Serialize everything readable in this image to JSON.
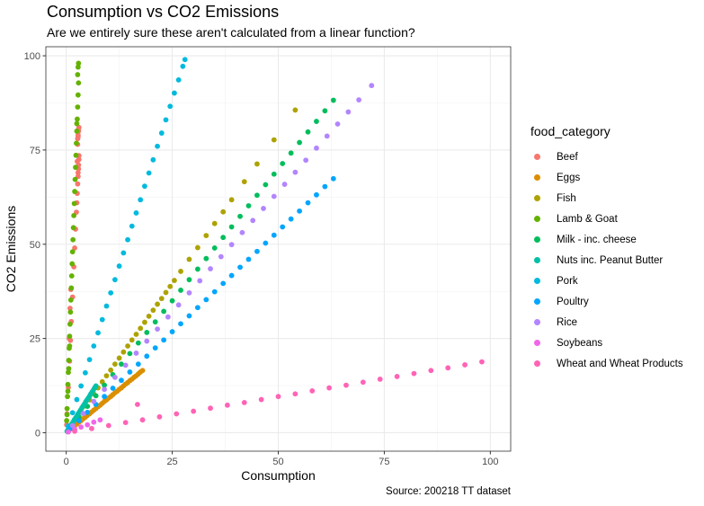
{
  "chart_data": {
    "type": "scatter",
    "title": "Consumption vs CO2 Emissions",
    "subtitle": "Are we entirely sure these aren't calculated from a linear function?",
    "caption": "Source: 200218 TT dataset",
    "xlabel": "Consumption",
    "ylabel": "CO2 Emissions",
    "xlim": [
      -4.8,
      104.8
    ],
    "ylim": [
      -4.9,
      102.4
    ],
    "xticks": [
      0,
      25,
      50,
      75,
      100
    ],
    "yticks": [
      0,
      25,
      50,
      75,
      100
    ],
    "grid": true,
    "legend_title": "food_category",
    "legend_position": "right",
    "series": [
      {
        "name": "Beef",
        "color": "#F8766D",
        "x": [
          0.1,
          0.2,
          0.5,
          0.8,
          1.0,
          1.2,
          1.5,
          1.8,
          2.0,
          2.2,
          2.4,
          2.5,
          2.6,
          2.7,
          2.8,
          2.8,
          2.9,
          2.9,
          3.0,
          3.0,
          2.6,
          2.7,
          2.7,
          2.8,
          2.9,
          2.9,
          3.0,
          2.8,
          0.7,
          0.9,
          1.1
        ],
        "y": [
          2.1,
          5.0,
          12.0,
          19.0,
          24.5,
          29.5,
          36.0,
          44.0,
          49.0,
          54.0,
          58.5,
          61.0,
          63.5,
          66.0,
          68.0,
          69.0,
          70.0,
          71.0,
          72.5,
          73.5,
          72.0,
          76.5,
          78.0,
          79.0,
          80.0,
          80.5,
          81.0,
          78.5,
          25.0,
          33.0,
          38.0
        ]
      },
      {
        "name": "Eggs",
        "color": "#DB8E00",
        "x": [
          0.3,
          0.7,
          1.0,
          1.5,
          2.0,
          2.5,
          3.0,
          3.5,
          4.0,
          4.5,
          5.0,
          5.5,
          6.0,
          6.5,
          7.0,
          7.5,
          8.0,
          8.5,
          9.0,
          9.5,
          10.0,
          10.5,
          11.0,
          11.5,
          12.0,
          12.5,
          13.0,
          13.5,
          14.0,
          14.5,
          15.0,
          15.5,
          16.0,
          16.5,
          17.0,
          17.5,
          18.0
        ],
        "y": [
          0.3,
          0.7,
          1.0,
          1.4,
          1.8,
          2.3,
          2.8,
          3.2,
          3.7,
          4.1,
          4.6,
          5.0,
          5.5,
          6.0,
          6.4,
          6.9,
          7.3,
          7.8,
          8.3,
          8.7,
          9.2,
          9.6,
          10.1,
          10.6,
          11.0,
          11.5,
          11.9,
          12.4,
          12.9,
          13.3,
          13.8,
          14.2,
          14.7,
          15.1,
          15.6,
          16.1,
          16.5
        ]
      },
      {
        "name": "Fish",
        "color": "#AEA200",
        "x": [
          0.5,
          1.5,
          2.5,
          3.5,
          4.5,
          5.5,
          6.5,
          7.5,
          8.5,
          9.5,
          10.5,
          11.5,
          12.5,
          13.5,
          14.5,
          15.5,
          16.5,
          17.5,
          18.5,
          19.5,
          20.5,
          21.5,
          22.5,
          23.5,
          24.5,
          25.5,
          27.0,
          29.0,
          31.0,
          33.0,
          35.0,
          37.0,
          39.0,
          42.0,
          45.0,
          49.0,
          54.0
        ],
        "y": [
          0.8,
          2.4,
          4.0,
          5.6,
          7.1,
          8.7,
          10.3,
          11.9,
          13.5,
          15.1,
          16.6,
          18.2,
          19.8,
          21.4,
          23.0,
          24.6,
          26.1,
          27.7,
          29.3,
          30.9,
          32.5,
          34.1,
          35.6,
          37.2,
          38.8,
          40.4,
          42.8,
          46.0,
          49.1,
          52.3,
          55.5,
          58.6,
          61.8,
          66.6,
          71.3,
          77.7,
          85.6
        ]
      },
      {
        "name": "Lamb & Goat",
        "color": "#64B200",
        "x": [
          0.1,
          0.2,
          0.3,
          0.4,
          0.5,
          0.6,
          0.7,
          0.8,
          0.9,
          1.0,
          1.1,
          1.2,
          1.3,
          1.4,
          1.5,
          1.6,
          1.7,
          1.8,
          1.9,
          2.0,
          2.1,
          2.2,
          2.3,
          2.4,
          2.5,
          2.6,
          2.7,
          2.8,
          2.9,
          2.7,
          2.8,
          2.5,
          2.9,
          0.2,
          0.4,
          0.6,
          0.8
        ],
        "y": [
          3.2,
          6.4,
          9.6,
          12.8,
          16.0,
          19.2,
          22.4,
          25.6,
          28.8,
          32.0,
          35.2,
          38.4,
          41.6,
          44.8,
          48.0,
          51.2,
          54.4,
          57.6,
          60.8,
          64.0,
          67.2,
          70.4,
          73.6,
          76.8,
          80.0,
          83.2,
          86.4,
          89.6,
          92.8,
          95.0,
          97.0,
          82.0,
          98.0,
          4.8,
          11.0,
          17.0,
          23.0
        ]
      },
      {
        "name": "Milk - inc. cheese",
        "color": "#00BD5C",
        "x": [
          1.0,
          3.0,
          5.0,
          7.0,
          9.0,
          11.0,
          13.0,
          15.0,
          17.0,
          19.0,
          21.0,
          23.0,
          25.0,
          27.0,
          29.0,
          31.0,
          33.0,
          35.0,
          37.0,
          39.0,
          41.0,
          43.0,
          45.0,
          47.0,
          49.0,
          51.0,
          53.0,
          55.0,
          57.0,
          59.0,
          61.0,
          63.0
        ],
        "y": [
          1.4,
          4.2,
          7.0,
          9.8,
          12.6,
          15.4,
          18.2,
          21.0,
          23.8,
          26.6,
          29.4,
          32.2,
          35.0,
          37.8,
          40.6,
          43.4,
          46.2,
          49.0,
          51.8,
          54.6,
          57.4,
          60.2,
          63.0,
          65.8,
          68.6,
          71.4,
          74.2,
          77.0,
          79.8,
          82.6,
          85.4,
          88.2
        ]
      },
      {
        "name": "Nuts inc. Peanut Butter",
        "color": "#00C1A7",
        "x": [
          0.2,
          0.5,
          0.8,
          1.0,
          1.3,
          1.6,
          1.9,
          2.2,
          2.5,
          2.8,
          3.1,
          3.4,
          3.7,
          4.0,
          4.3,
          4.6,
          4.9,
          5.2,
          5.5,
          5.8,
          6.1,
          6.4,
          6.7,
          7.0
        ],
        "y": [
          0.4,
          0.9,
          1.4,
          1.8,
          2.3,
          2.8,
          3.4,
          3.9,
          4.4,
          5.0,
          5.5,
          6.0,
          6.6,
          7.1,
          7.6,
          8.2,
          8.7,
          9.2,
          9.7,
          10.3,
          10.8,
          11.3,
          11.9,
          12.4
        ]
      },
      {
        "name": "Pork",
        "color": "#00BADE",
        "x": [
          0.5,
          1.5,
          2.5,
          3.5,
          4.5,
          5.5,
          6.5,
          7.5,
          8.5,
          9.5,
          10.5,
          11.5,
          12.5,
          13.5,
          14.5,
          15.5,
          16.5,
          17.5,
          18.5,
          19.5,
          20.5,
          21.5,
          22.5,
          23.5,
          24.5,
          25.5,
          26.5,
          27.5,
          28.0
        ],
        "y": [
          1.8,
          5.3,
          8.8,
          12.4,
          15.9,
          19.4,
          23.0,
          26.5,
          30.0,
          33.6,
          37.1,
          40.6,
          44.2,
          47.7,
          51.2,
          54.8,
          58.3,
          61.8,
          65.4,
          68.9,
          72.4,
          76.0,
          79.5,
          83.0,
          86.6,
          90.1,
          93.6,
          97.2,
          99.0
        ]
      },
      {
        "name": "Poultry",
        "color": "#00A6FF",
        "x": [
          1.0,
          3.0,
          5.0,
          7.0,
          9.0,
          11.0,
          13.0,
          15.0,
          17.0,
          19.0,
          21.0,
          23.0,
          25.0,
          27.0,
          29.0,
          31.0,
          33.0,
          35.0,
          37.0,
          39.0,
          41.0,
          43.0,
          45.0,
          47.0,
          49.0,
          51.0,
          53.0,
          55.0,
          57.0,
          59.0,
          61.0,
          63.0
        ],
        "y": [
          1.1,
          3.2,
          5.4,
          7.5,
          9.6,
          11.8,
          13.9,
          16.1,
          18.2,
          20.3,
          22.5,
          24.6,
          26.8,
          28.9,
          31.0,
          33.2,
          35.3,
          37.4,
          39.6,
          41.7,
          43.9,
          46.0,
          48.1,
          50.3,
          52.4,
          54.6,
          56.7,
          58.8,
          61.0,
          63.1,
          65.3,
          67.4
        ]
      },
      {
        "name": "Rice",
        "color": "#B385FF",
        "x": [
          1.5,
          4.0,
          6.5,
          9.0,
          11.5,
          14.0,
          16.5,
          19.0,
          21.5,
          24.0,
          26.5,
          29.0,
          31.5,
          34.0,
          36.5,
          39.0,
          41.5,
          44.0,
          46.5,
          49.0,
          51.5,
          54.0,
          56.5,
          59.0,
          61.5,
          64.0,
          66.5,
          69.0,
          72.0
        ],
        "y": [
          1.9,
          5.1,
          8.3,
          11.5,
          14.7,
          17.9,
          21.1,
          24.3,
          27.5,
          30.7,
          33.9,
          37.1,
          40.3,
          43.5,
          46.7,
          49.9,
          53.1,
          56.3,
          59.5,
          62.7,
          65.9,
          69.1,
          72.3,
          75.5,
          78.7,
          81.9,
          85.1,
          88.3,
          92.1
        ]
      },
      {
        "name": "Soybeans",
        "color": "#EF67EB",
        "x": [
          0.5,
          2.0,
          3.5,
          5.0,
          6.5,
          8.0
        ],
        "y": [
          0.2,
          0.9,
          1.5,
          2.1,
          2.8,
          3.4
        ]
      },
      {
        "name": "Wheat and Wheat Products",
        "color": "#FF63B6",
        "x": [
          2.0,
          6.0,
          10.0,
          14.0,
          18.0,
          22.0,
          26.0,
          30.0,
          34.0,
          38.0,
          42.0,
          46.0,
          50.0,
          54.0,
          58.0,
          62.0,
          66.0,
          70.0,
          74.0,
          78.0,
          82.0,
          86.0,
          90.0,
          94.0,
          98.0,
          16.8
        ],
        "y": [
          0.4,
          1.1,
          1.9,
          2.7,
          3.4,
          4.2,
          5.0,
          5.7,
          6.5,
          7.3,
          8.0,
          8.8,
          9.6,
          10.3,
          11.1,
          11.9,
          12.6,
          13.4,
          14.2,
          14.9,
          15.7,
          16.5,
          17.2,
          18.0,
          18.8,
          7.5
        ]
      }
    ]
  }
}
